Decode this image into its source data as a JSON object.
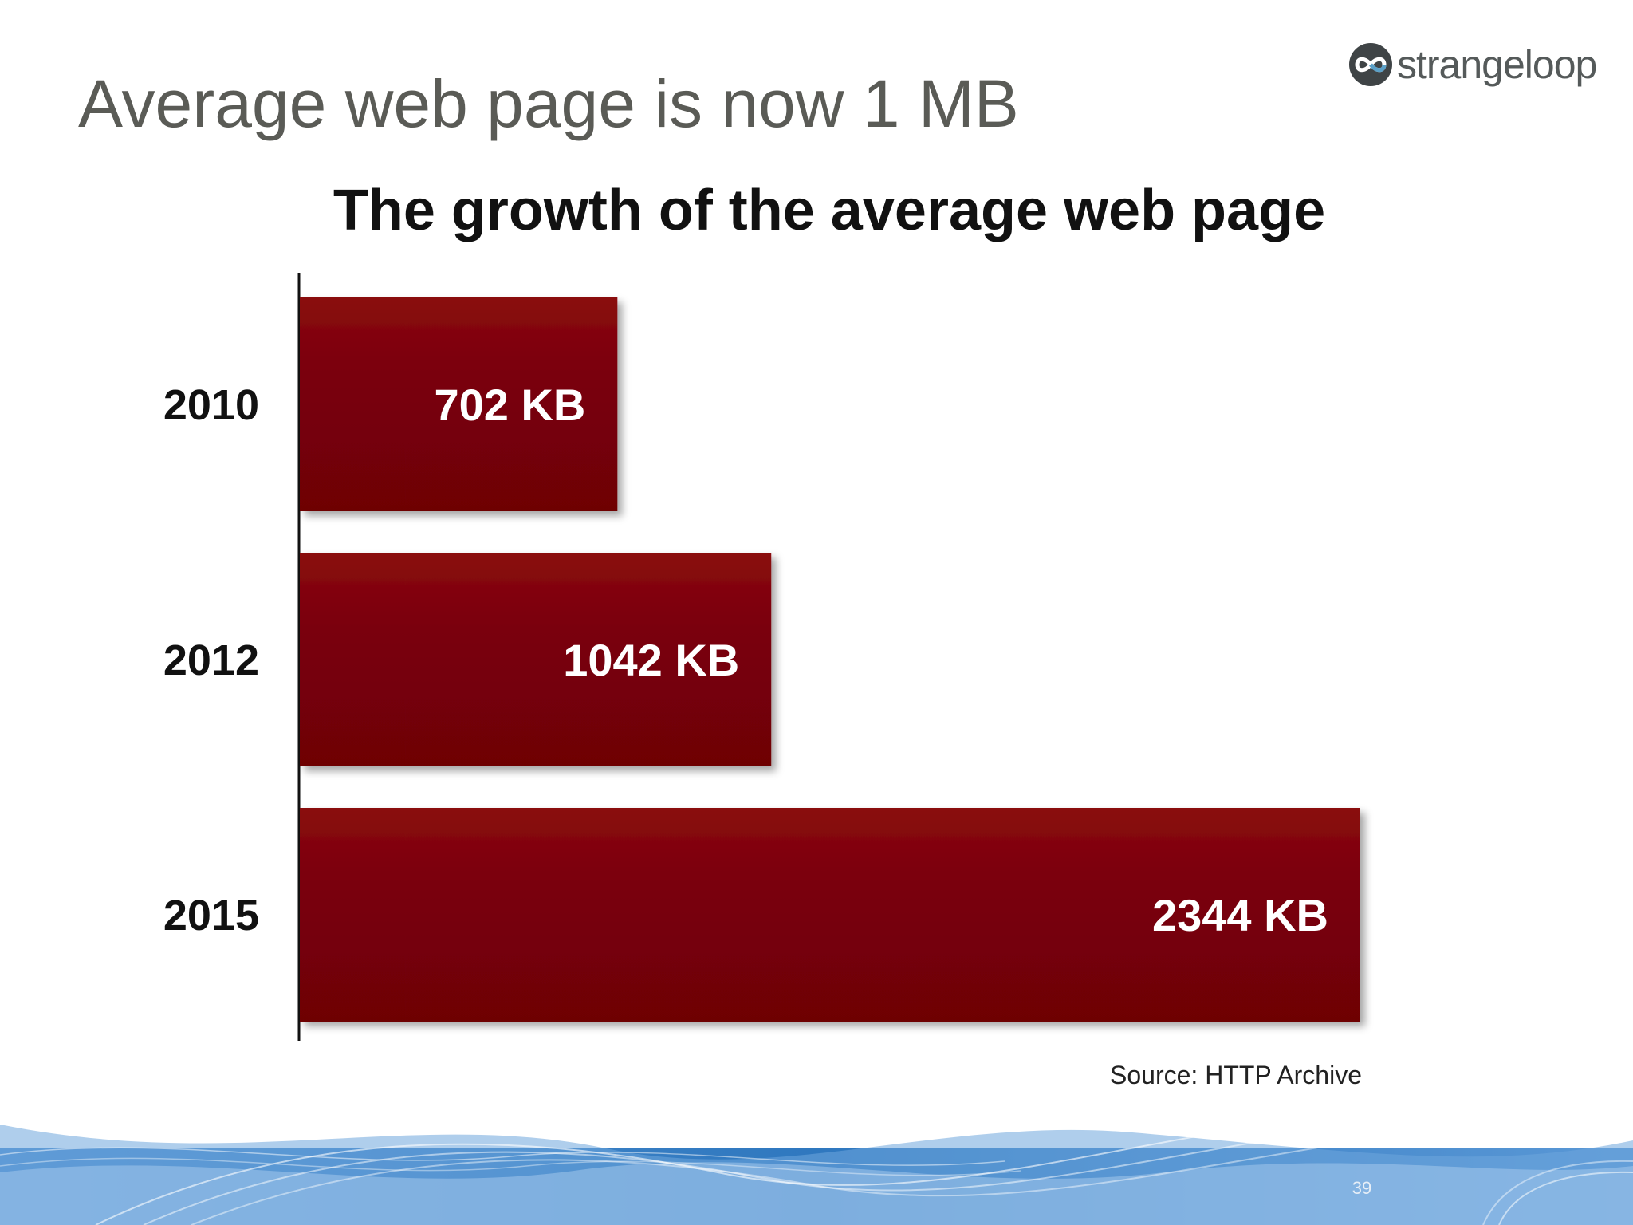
{
  "slide": {
    "title": "Average web page is now 1 MB",
    "page_number": "39"
  },
  "logo": {
    "text": "strangeloop",
    "icon": "infinity-loop-icon",
    "colors": {
      "dark": "#3f4446",
      "accent": "#5aa0c8"
    }
  },
  "colors": {
    "title": "#5a5b56",
    "bar": "#7a0108",
    "bar_highlight": "#8a0a10",
    "footer_wave_dark": "#2f78bf",
    "footer_wave_light": "#8fb9e4"
  },
  "chart_data": {
    "type": "bar",
    "orientation": "horizontal",
    "title": "The growth of the average web page",
    "categories": [
      "2010",
      "2012",
      "2015"
    ],
    "values": [
      702,
      1042,
      2344
    ],
    "value_labels": [
      "702 KB",
      "1042 KB",
      "2344 KB"
    ],
    "unit": "KB",
    "source": "Source: HTTP Archive",
    "grid": false,
    "legend": "none",
    "xlim": [
      0,
      2344
    ]
  }
}
